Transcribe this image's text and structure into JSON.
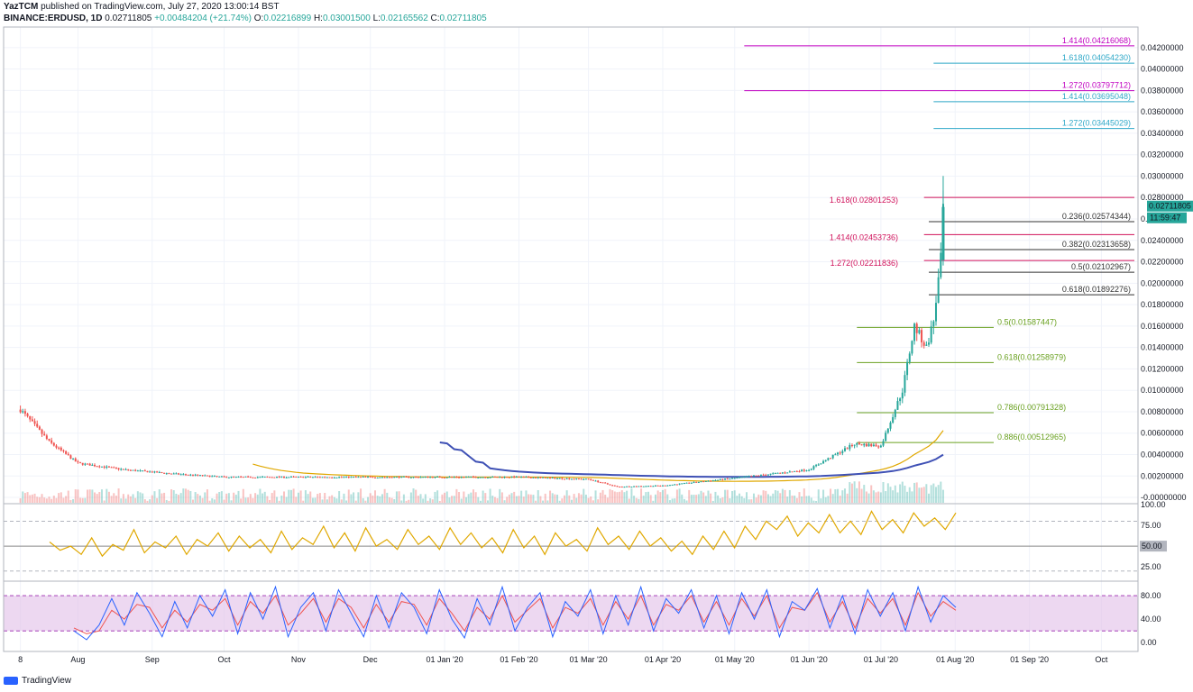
{
  "header": {
    "author": "YazTCM",
    "published": "published on TradingView.com, July 27, 2020 13:00:14 BST",
    "symbol": "BINANCE:ERDUSD, 1D",
    "last": "0.02711805",
    "change": "+0.00484204 (+21.74%)",
    "open_label": "O:",
    "open": "0.02216899",
    "high_label": "H:",
    "high": "0.03001500",
    "low_label": "L:",
    "low": "0.02165562",
    "close_label": "C:",
    "close": "0.02711805"
  },
  "price_badge": {
    "price": "0.02711805",
    "countdown": "11:59:47",
    "color": "#26a69a"
  },
  "footer": {
    "brand": "TradingView"
  },
  "colors": {
    "up": "#26a69a",
    "down": "#ef5350",
    "rsi": "#e0a800",
    "ma_fast": "#e0a800",
    "ma_slow": "#3f51b5",
    "fib_magenta": "#c000c0",
    "fib_blue": "#2ea8c8",
    "fib_red": "#d0105a",
    "fib_dark": "#333333",
    "fib_green": "#6aa121"
  },
  "chart_data": {
    "type": "candlestick",
    "title": "BINANCE:ERDUSD, 1D",
    "price_axis": {
      "ylim": [
        -0.0005,
        0.0435
      ],
      "ticks": [
        "0.04200000",
        "0.04000000",
        "0.03800000",
        "0.03600000",
        "0.03400000",
        "0.03200000",
        "0.03000000",
        "0.02800000",
        "0.02600000",
        "0.02400000",
        "0.02200000",
        "0.02000000",
        "0.01800000",
        "0.01600000",
        "0.01400000",
        "0.01200000",
        "0.01000000",
        "0.00800000",
        "0.00600000",
        "0.00400000",
        "0.00200000",
        "-0.00000000"
      ]
    },
    "time_axis": [
      "8",
      "Aug",
      "Sep",
      "Oct",
      "Nov",
      "Dec",
      "01 Jan '20",
      "01 Feb '20",
      "01 Mar '20",
      "01 Apr '20",
      "01 May '20",
      "01 Jun '20",
      "01 Jul '20",
      "01 Aug '20",
      "01 Sep '20",
      "Oct"
    ],
    "close_approx": [
      {
        "date": "2019-07-08",
        "close": 0.0082
      },
      {
        "date": "2019-07-20",
        "close": 0.0052
      },
      {
        "date": "2019-08-01",
        "close": 0.0032
      },
      {
        "date": "2019-08-20",
        "close": 0.0026
      },
      {
        "date": "2019-09-10",
        "close": 0.0022
      },
      {
        "date": "2019-10-01",
        "close": 0.0019
      },
      {
        "date": "2019-11-01",
        "close": 0.0019
      },
      {
        "date": "2019-12-01",
        "close": 0.0019
      },
      {
        "date": "2020-01-01",
        "close": 0.0019
      },
      {
        "date": "2020-02-01",
        "close": 0.0019
      },
      {
        "date": "2020-03-01",
        "close": 0.0017
      },
      {
        "date": "2020-03-13",
        "close": 0.001
      },
      {
        "date": "2020-04-01",
        "close": 0.0011
      },
      {
        "date": "2020-05-01",
        "close": 0.0018
      },
      {
        "date": "2020-06-01",
        "close": 0.0026
      },
      {
        "date": "2020-06-20",
        "close": 0.005
      },
      {
        "date": "2020-07-01",
        "close": 0.0048
      },
      {
        "date": "2020-07-10",
        "close": 0.01
      },
      {
        "date": "2020-07-15",
        "close": 0.016
      },
      {
        "date": "2020-07-20",
        "close": 0.014
      },
      {
        "date": "2020-07-23",
        "close": 0.0165
      },
      {
        "date": "2020-07-26",
        "close": 0.0222
      },
      {
        "date": "2020-07-27",
        "close": 0.0271
      }
    ],
    "fib_levels": [
      {
        "label": "1.414(0.04216068)",
        "value": 0.04216068,
        "color": "fib_magenta",
        "from": "2020-05-05"
      },
      {
        "label": "1.618(0.04054230)",
        "value": 0.0405423,
        "color": "fib_blue",
        "from": "2020-07-23"
      },
      {
        "label": "1.272(0.03797712)",
        "value": 0.03797712,
        "color": "fib_magenta",
        "from": "2020-05-05"
      },
      {
        "label": "1.414(0.03695048)",
        "value": 0.03695048,
        "color": "fib_blue",
        "from": "2020-07-23"
      },
      {
        "label": "1.272(0.03445029)",
        "value": 0.03445029,
        "color": "fib_blue",
        "from": "2020-07-23"
      },
      {
        "label": "1.618(0.02801253)",
        "value": 0.02801253,
        "color": "fib_red",
        "from": "2020-07-19"
      },
      {
        "label": "0.236(0.02574344)",
        "value": 0.02574344,
        "color": "fib_dark",
        "from": "2020-07-21"
      },
      {
        "label": "1.414(0.02453736)",
        "value": 0.02453736,
        "color": "fib_red",
        "from": "2020-07-19"
      },
      {
        "label": "0.382(0.02313658)",
        "value": 0.02313658,
        "color": "fib_dark",
        "from": "2020-07-21"
      },
      {
        "label": "1.272(0.02211836)",
        "value": 0.02211836,
        "color": "fib_red",
        "from": "2020-07-19"
      },
      {
        "label": "0.5(0.02102967)",
        "value": 0.02102967,
        "color": "fib_dark",
        "from": "2020-07-21"
      },
      {
        "label": "0.618(0.01892276)",
        "value": 0.01892276,
        "color": "fib_dark",
        "from": "2020-07-21"
      },
      {
        "label": "0.5(0.01587447)",
        "value": 0.01587447,
        "color": "fib_green",
        "from": "2020-06-21"
      },
      {
        "label": "0.618(0.01258979)",
        "value": 0.01258979,
        "color": "fib_green",
        "from": "2020-06-21"
      },
      {
        "label": "0.786(0.00791328)",
        "value": 0.00791328,
        "color": "fib_green",
        "from": "2020-06-21"
      },
      {
        "label": "0.886(0.00512965)",
        "value": 0.00512965,
        "color": "fib_green",
        "from": "2020-06-21"
      }
    ],
    "rsi": {
      "ylim": [
        10,
        100
      ],
      "ticks": [
        "100.00",
        "75.00",
        "50.00",
        "25.00"
      ],
      "badge": "50.00",
      "values": [
        55,
        45,
        50,
        40,
        60,
        38,
        52,
        45,
        70,
        42,
        55,
        48,
        62,
        40,
        58,
        50,
        66,
        44,
        62,
        48,
        58,
        42,
        68,
        46,
        60,
        52,
        74,
        48,
        66,
        44,
        72,
        50,
        58,
        46,
        70,
        52,
        62,
        46,
        72,
        52,
        66,
        48,
        60,
        42,
        70,
        48,
        62,
        40,
        66,
        50,
        58,
        44,
        72,
        52,
        62,
        46,
        68,
        50,
        60,
        44,
        56,
        40,
        62,
        46,
        68,
        48,
        74,
        58,
        80,
        70,
        86,
        62,
        78,
        66,
        88,
        66,
        80,
        64,
        92,
        70,
        82,
        66,
        90,
        74,
        84,
        70,
        90
      ]
    },
    "stoch": {
      "ylim": [
        -15,
        100
      ],
      "ticks": [
        "80.00",
        "40.00",
        "0.00"
      ],
      "band": [
        20,
        80
      ],
      "k": [
        20,
        5,
        30,
        75,
        30,
        85,
        50,
        10,
        70,
        25,
        80,
        45,
        90,
        15,
        85,
        40,
        95,
        10,
        60,
        85,
        20,
        90,
        50,
        10,
        80,
        25,
        85,
        60,
        15,
        90,
        40,
        8,
        75,
        30,
        95,
        20,
        60,
        85,
        10,
        70,
        45,
        90,
        15,
        80,
        30,
        95,
        20,
        75,
        50,
        90,
        25,
        80,
        15,
        85,
        40,
        90,
        10,
        70,
        55,
        92,
        25,
        80,
        15,
        90,
        45,
        85,
        20,
        95,
        35,
        80,
        60
      ],
      "d": [
        25,
        15,
        20,
        55,
        40,
        65,
        60,
        25,
        55,
        35,
        65,
        55,
        75,
        30,
        70,
        50,
        80,
        30,
        50,
        75,
        35,
        75,
        60,
        25,
        65,
        35,
        70,
        65,
        30,
        75,
        50,
        20,
        60,
        40,
        80,
        35,
        55,
        75,
        25,
        60,
        50,
        75,
        30,
        70,
        40,
        80,
        30,
        65,
        55,
        80,
        35,
        70,
        30,
        75,
        45,
        80,
        25,
        60,
        55,
        85,
        35,
        70,
        25,
        75,
        50,
        75,
        30,
        85,
        45,
        70,
        55
      ]
    }
  }
}
